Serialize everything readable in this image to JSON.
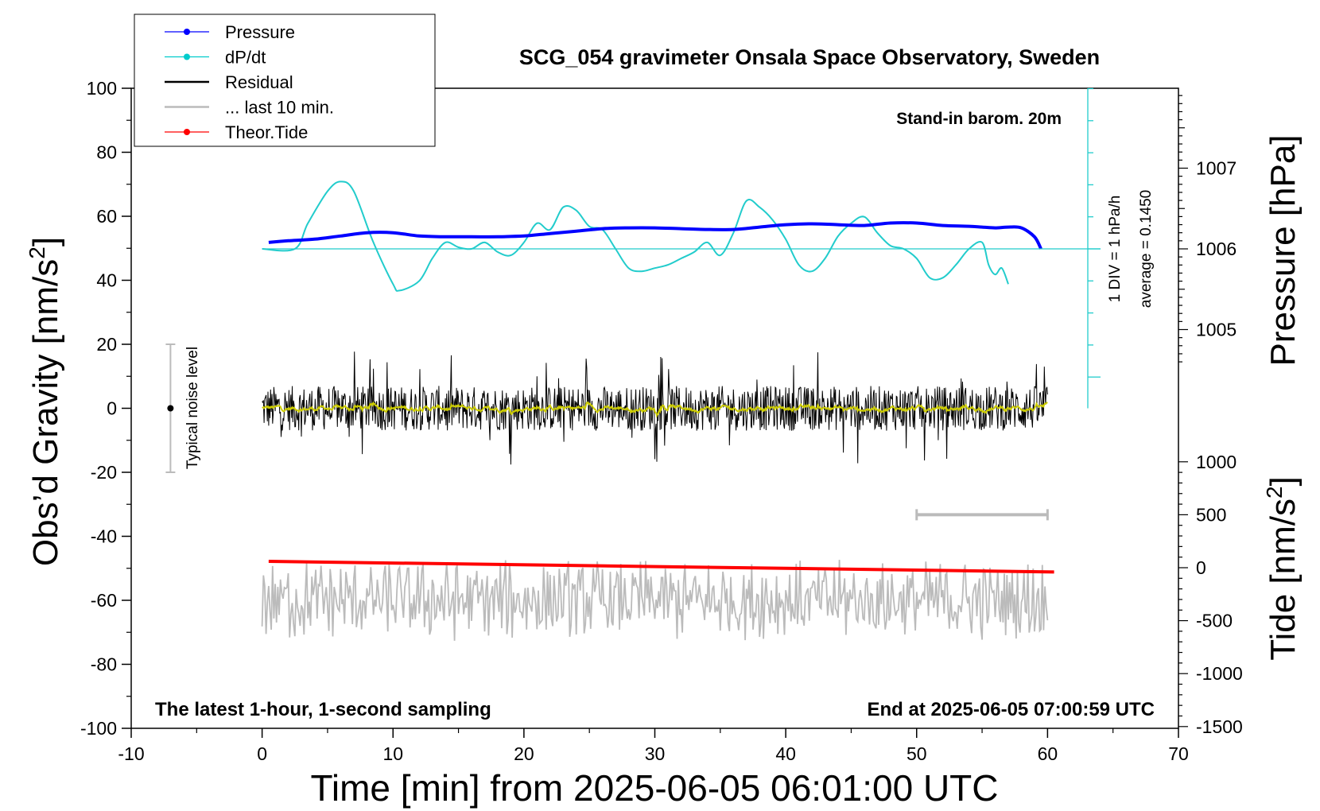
{
  "chart_data": {
    "type": "line",
    "title": "SCG_054 gravimeter Onsala Space Observatory, Sweden",
    "xlabel": "Time [min] from 2025-06-05 06:01:00 UTC",
    "ylabel_left_main": "Obs’d Gravity [nm/s",
    "ylabel_left_sup": "2",
    "ylabel_left_end": "]",
    "ylabel_right_top": "Pressure [hPa]",
    "ylabel_right_bottom_main": "Tide [nm/s",
    "ylabel_right_bottom_sup": "2",
    "ylabel_right_bottom_end": "]",
    "xlim": [
      -10,
      70
    ],
    "ylim": [
      -100,
      100
    ],
    "pressure_lim": [
      1004,
      1008
    ],
    "tide_lim": [
      -1500,
      1000
    ],
    "x_ticks": [
      "-10",
      "0",
      "10",
      "20",
      "30",
      "40",
      "50",
      "60",
      "70"
    ],
    "y_ticks": [
      "100",
      "80",
      "60",
      "40",
      "20",
      "0",
      "-20",
      "-40",
      "-60",
      "-80",
      "-100"
    ],
    "pressure_ticks": [
      "1007",
      "1006",
      "1005"
    ],
    "tide_ticks": [
      "1000",
      "500",
      "0",
      "-500",
      "-1000",
      "-1500"
    ],
    "legend": {
      "position": "top-left",
      "entries": [
        {
          "label": "Pressure",
          "color": "#0000ff",
          "marker": true
        },
        {
          "label": "dP/dt",
          "color": "#00cccc",
          "marker": true
        },
        {
          "label": "Residual",
          "color": "#000000",
          "marker": false
        },
        {
          "label": "... last 10 min.",
          "color": "#bbbbbb",
          "marker": false
        },
        {
          "label": "Theor.Tide",
          "color": "#ff0000",
          "marker": true
        }
      ]
    },
    "annotations": {
      "barometer": "Stand-in barom. 20m",
      "bottom_left": "The latest 1-hour, 1-second sampling",
      "bottom_right": "End at 2025-06-05 07:00:59 UTC",
      "noise": "Typical noise level",
      "dpdt_scale": "1 DIV = 1 hPa/h",
      "dpdt_average": "average = 0.1450"
    },
    "noise_bar": {
      "x": -7,
      "center": 0,
      "half_range": 20
    },
    "last10_bar": {
      "x_start": 50,
      "x_end": 60,
      "tide_level": 500
    },
    "series": [
      {
        "name": "Pressure",
        "unit": "hPa",
        "color": "#0000ff",
        "x": [
          0.5,
          2,
          4,
          6,
          8,
          10,
          12,
          14,
          16,
          18,
          20,
          22,
          24,
          26,
          28,
          30,
          32,
          34,
          36,
          38,
          40,
          42,
          44,
          46,
          48,
          50,
          52,
          54,
          55,
          56,
          57,
          58,
          59,
          59.5
        ],
        "y": [
          1006.08,
          1006.1,
          1006.12,
          1006.16,
          1006.2,
          1006.2,
          1006.16,
          1006.15,
          1006.15,
          1006.15,
          1006.16,
          1006.19,
          1006.22,
          1006.25,
          1006.26,
          1006.26,
          1006.25,
          1006.24,
          1006.24,
          1006.27,
          1006.3,
          1006.31,
          1006.3,
          1006.29,
          1006.32,
          1006.32,
          1006.29,
          1006.28,
          1006.27,
          1006.26,
          1006.27,
          1006.26,
          1006.15,
          1006.0
        ]
      },
      {
        "name": "dP/dt",
        "unit": "hPa/h",
        "color": "#22cccc",
        "x": [
          0,
          2.5,
          3.5,
          5,
          6,
          7,
          8.5,
          10,
          10.5,
          12,
          13,
          14,
          15,
          16,
          17,
          18,
          19,
          20,
          21,
          22,
          23,
          24,
          25,
          26,
          27,
          28,
          29,
          30,
          31,
          32,
          33,
          34,
          35,
          36,
          37,
          38,
          39,
          40,
          41,
          42,
          43,
          44,
          45,
          46,
          47,
          48,
          49,
          50,
          51,
          52,
          53,
          54,
          55,
          55.5,
          56,
          56.5,
          57
        ],
        "y": [
          0,
          0,
          0.8,
          1.8,
          2.1,
          1.8,
          0.2,
          -1.1,
          -1.3,
          -1.0,
          -0.3,
          0.2,
          0.05,
          0,
          0.2,
          -0.1,
          -0.2,
          0.2,
          0.8,
          0.6,
          1.3,
          1.2,
          0.7,
          0.6,
          0,
          -0.6,
          -0.7,
          -0.6,
          -0.5,
          -0.3,
          -0.1,
          0.2,
          -0.2,
          0.5,
          1.5,
          1.3,
          0.9,
          0.3,
          -0.5,
          -0.7,
          -0.3,
          0.4,
          0.8,
          1.0,
          0.5,
          0.1,
          0,
          -0.3,
          -0.9,
          -0.9,
          -0.5,
          0,
          0.2,
          -0.5,
          -0.8,
          -0.6,
          -1.1
        ]
      },
      {
        "name": "Residual",
        "unit": "nm/s2",
        "color": "#000000",
        "x_range": [
          0,
          60
        ],
        "amplitude": 7,
        "spike_amplitude": 18
      },
      {
        "name": "Theor.Tide",
        "unit": "nm/s2",
        "color": "#ff0000",
        "x": [
          0.5,
          60.5
        ],
        "y": [
          60,
          -40
        ]
      },
      {
        "name": "... last 10 min.",
        "unit": "nm/s2",
        "color": "#bbbbbb",
        "x_range": [
          0,
          60
        ],
        "offset": -60,
        "amplitude": 10
      }
    ]
  }
}
